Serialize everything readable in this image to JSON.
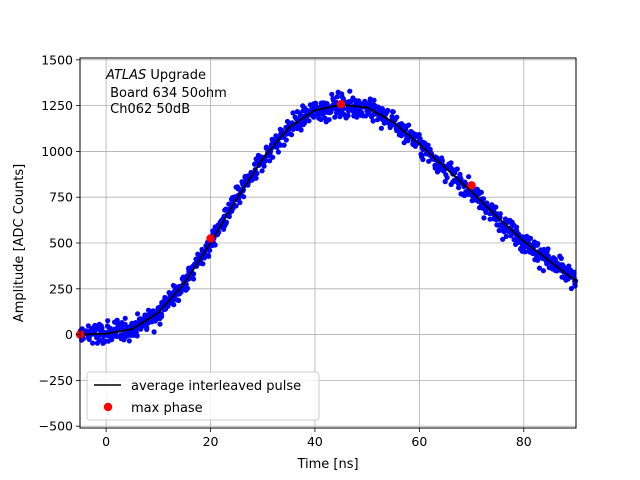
{
  "chart_data": {
    "type": "scatter",
    "xlabel": "Time [ns]",
    "ylabel": "Amplitude [ADC Counts]",
    "xlim": [
      -5,
      90
    ],
    "ylim": [
      -510,
      1510
    ],
    "x_ticks": [
      0,
      20,
      40,
      60,
      80
    ],
    "y_ticks": [
      -500,
      -250,
      0,
      250,
      500,
      750,
      1000,
      1250,
      1500
    ],
    "grid": true,
    "legend_position": "lower-left",
    "annotation": {
      "line1_italic": "ATLAS",
      "line1_rest": " Upgrade",
      "line2": " Board 634 50ohm",
      "line3": " Ch062 50dB"
    },
    "series": [
      {
        "name": "",
        "kind": "scatter-points",
        "color": "#0000ff",
        "description_of_shape": "noisy samples around the average pulse, spread about ±60 ADC counts",
        "baseline": 0,
        "peak": 1255,
        "peak_time": 46.5
      },
      {
        "name": "average interleaved pulse",
        "kind": "line",
        "color": "#000000",
        "x": [
          -5,
          0,
          5,
          10,
          15,
          20,
          25,
          30,
          35,
          40,
          45,
          50,
          55,
          60,
          65,
          70,
          75,
          80,
          85,
          90
        ],
        "y": [
          0,
          5,
          30,
          120,
          280,
          500,
          740,
          960,
          1130,
          1225,
          1255,
          1240,
          1160,
          1040,
          910,
          780,
          640,
          510,
          400,
          290
        ]
      },
      {
        "name": "max phase",
        "kind": "markers",
        "color": "#ff0000",
        "x": [
          -5,
          20,
          45,
          70
        ],
        "y": [
          0,
          525,
          1258,
          815
        ]
      }
    ]
  }
}
